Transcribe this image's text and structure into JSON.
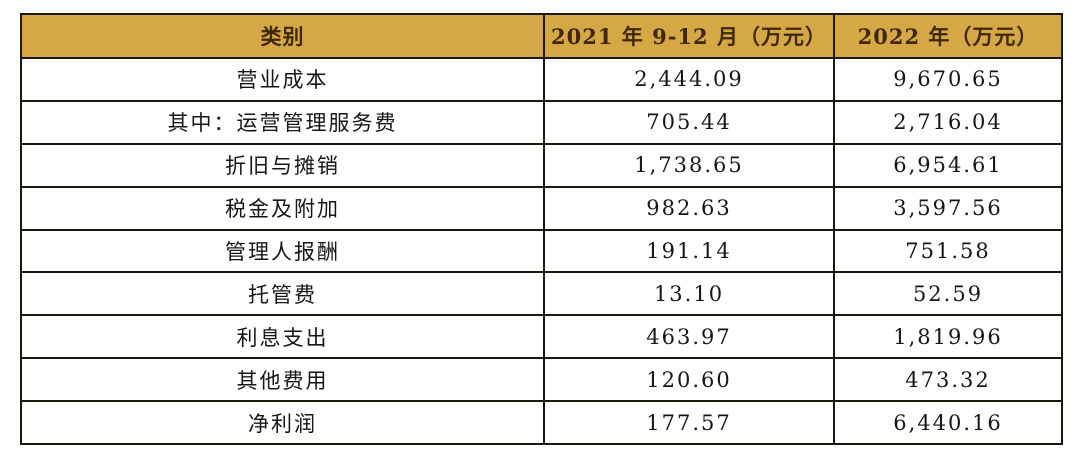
{
  "colors": {
    "header_background": "#d5a845",
    "header_text": "#3f2708",
    "border": "#1e170e",
    "body_text": "#161616",
    "page_background": "#ffffff"
  },
  "table": {
    "columns": [
      {
        "label": "类别"
      },
      {
        "label": "2021 年 9-12 月（万元）"
      },
      {
        "label": "2022 年（万元）"
      }
    ],
    "rows": [
      {
        "category": "营业成本",
        "v2021": "2,444.09",
        "v2022": "9,670.65"
      },
      {
        "category": "其中：运营管理服务费",
        "v2021": "705.44",
        "v2022": "2,716.04"
      },
      {
        "category": "折旧与摊销",
        "v2021": "1,738.65",
        "v2022": "6,954.61"
      },
      {
        "category": "税金及附加",
        "v2021": "982.63",
        "v2022": "3,597.56"
      },
      {
        "category": "管理人报酬",
        "v2021": "191.14",
        "v2022": "751.58"
      },
      {
        "category": "托管费",
        "v2021": "13.10",
        "v2022": "52.59"
      },
      {
        "category": "利息支出",
        "v2021": "463.97",
        "v2022": "1,819.96"
      },
      {
        "category": "其他费用",
        "v2021": "120.60",
        "v2022": "473.32"
      },
      {
        "category": "净利润",
        "v2021": "177.57",
        "v2022": "6,440.16"
      }
    ]
  }
}
